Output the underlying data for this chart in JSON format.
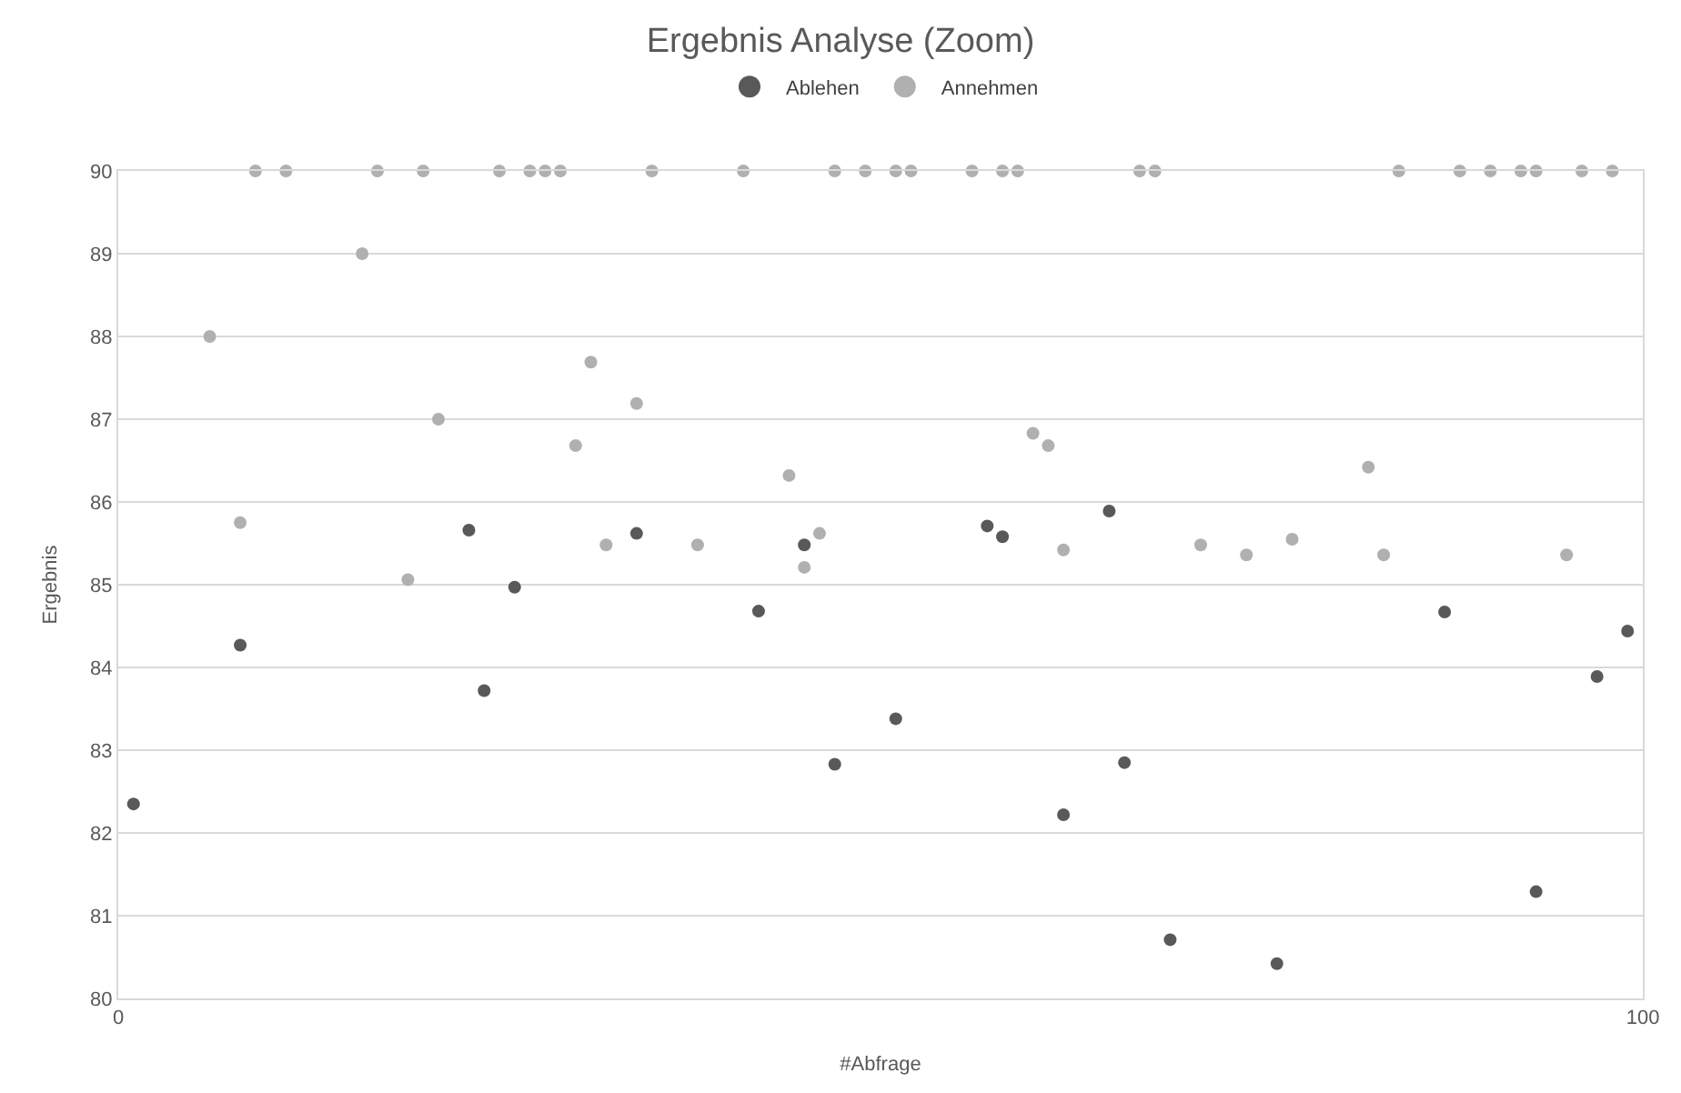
{
  "chart_data": {
    "type": "scatter",
    "title": "Ergebnis Analyse (Zoom)",
    "xlabel": "#Abfrage",
    "ylabel": "Ergebnis",
    "xlim": [
      0,
      100
    ],
    "xticks": [
      0,
      100
    ],
    "ylim": [
      80,
      90
    ],
    "yticks": [
      80,
      81,
      82,
      83,
      84,
      85,
      86,
      87,
      88,
      89,
      90
    ],
    "grid": "y",
    "legend": "top",
    "marker": "circle",
    "series": [
      {
        "name": "Ablehen",
        "color": "#595959",
        "x": [
          1,
          8,
          23,
          24,
          26,
          34,
          42,
          45,
          47,
          51,
          57,
          58,
          62,
          65,
          66,
          69,
          76,
          87,
          93,
          97,
          99
        ],
        "values": [
          82.35,
          84.27,
          85.66,
          83.72,
          84.97,
          85.62,
          84.68,
          85.48,
          82.83,
          83.38,
          85.71,
          85.58,
          82.22,
          85.89,
          82.85,
          80.71,
          80.42,
          84.67,
          81.29,
          83.89,
          84.44
        ]
      },
      {
        "name": "Annehmen",
        "color": "#b0b0b0",
        "x": [
          6,
          8,
          9,
          11,
          16,
          17,
          19,
          20,
          21,
          25,
          27,
          28,
          29,
          30,
          31,
          32,
          34,
          35,
          38,
          41,
          44,
          45,
          46,
          47,
          49,
          51,
          52,
          56,
          58,
          59,
          60,
          61,
          62,
          67,
          68,
          71,
          74,
          77,
          82,
          83,
          84,
          88,
          90,
          92,
          93,
          95,
          96,
          98
        ],
        "values": [
          88.0,
          85.75,
          90,
          90,
          89.0,
          90,
          85.06,
          90,
          87.0,
          90,
          90,
          90,
          90,
          86.68,
          87.69,
          85.48,
          87.19,
          90,
          85.48,
          90,
          86.32,
          85.21,
          85.62,
          90,
          90,
          90,
          90,
          90,
          90,
          90,
          86.83,
          86.68,
          85.42,
          90,
          90,
          85.48,
          85.36,
          85.55,
          86.42,
          85.36,
          90,
          90,
          90,
          90,
          90,
          85.36,
          90,
          90
        ]
      }
    ]
  }
}
